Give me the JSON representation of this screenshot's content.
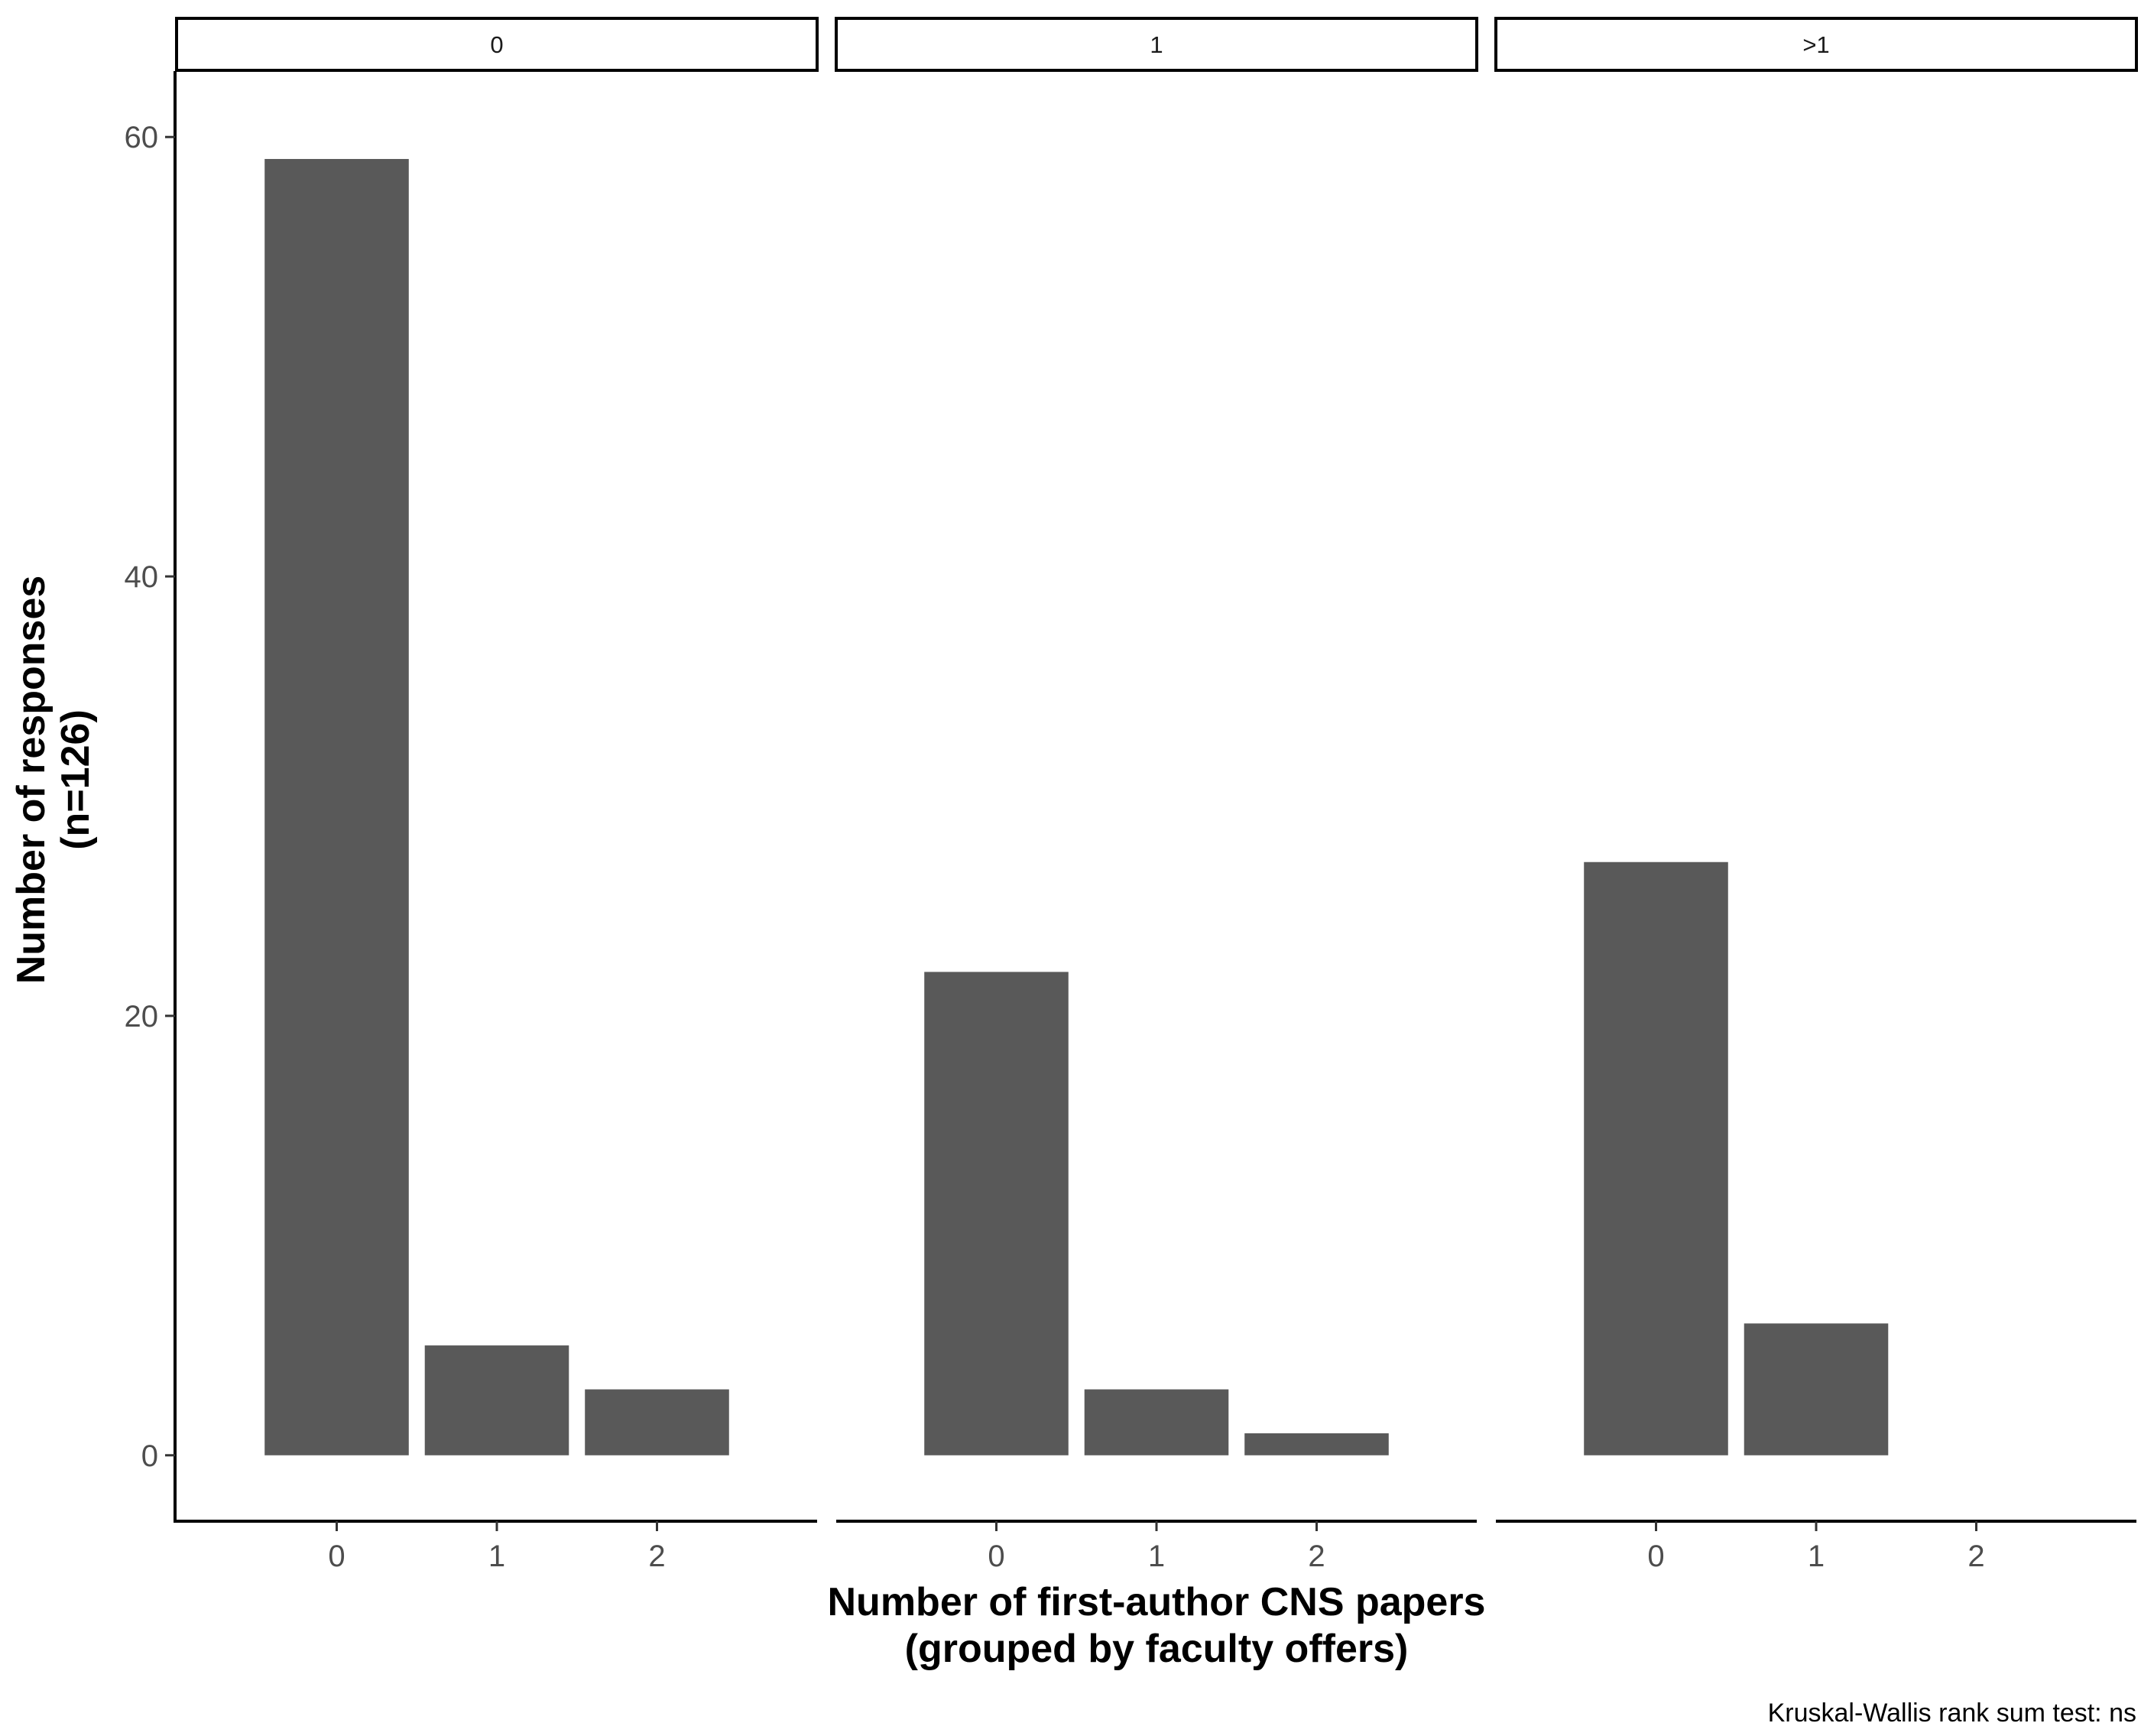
{
  "chart_data": {
    "type": "bar",
    "facet_label_note": "",
    "panels": [
      {
        "label": "0",
        "categories": [
          "0",
          "1",
          "2"
        ],
        "values": [
          59,
          5,
          3
        ]
      },
      {
        "label": "1",
        "categories": [
          "0",
          "1",
          "2"
        ],
        "values": [
          22,
          3,
          1
        ]
      },
      {
        "label": ">1",
        "categories": [
          "0",
          "1",
          "2"
        ],
        "values": [
          27,
          6,
          0
        ]
      }
    ],
    "xlabel": [
      "Number of first-author CNS papers",
      "(grouped by faculty offers)"
    ],
    "ylabel": [
      "Number of responses",
      "(n=126)"
    ],
    "yticks": [
      0,
      20,
      40,
      60
    ],
    "ylim": [
      -3,
      63
    ],
    "caption": "Kruskal-Wallis rank sum test: ns",
    "bar_color": "#595959",
    "grid": false
  }
}
